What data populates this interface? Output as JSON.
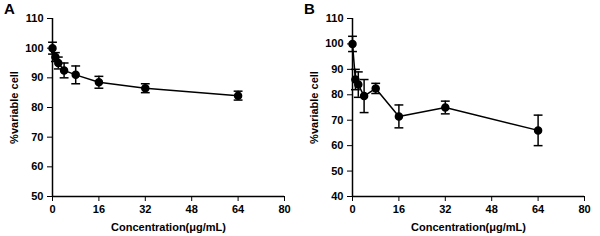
{
  "chart_data": [
    {
      "type": "line",
      "title": "A",
      "x": [
        0,
        1,
        2,
        4,
        8,
        16,
        32,
        64
      ],
      "values": [
        100,
        97,
        95,
        92.5,
        91,
        88.5,
        86.5,
        84
      ],
      "errors": [
        2,
        1.5,
        2,
        2.5,
        3,
        2,
        1.5,
        1.5
      ],
      "color": "#000000",
      "marker": "circle",
      "xlabel": "Concentration(μg/mL)",
      "ylabel": "%variable cell",
      "xlim": [
        0,
        80
      ],
      "xticks": [
        0,
        16,
        32,
        48,
        64,
        80
      ],
      "ylim": [
        50,
        110
      ],
      "yticks": [
        50,
        60,
        70,
        80,
        90,
        100,
        110
      ]
    },
    {
      "type": "line",
      "title": "B",
      "x": [
        0,
        1,
        2,
        4,
        8,
        16,
        32,
        64
      ],
      "values": [
        100,
        86,
        84,
        79.5,
        82.5,
        71.5,
        75,
        66
      ],
      "errors": [
        3,
        4,
        5,
        6.5,
        2,
        4.5,
        2.5,
        6
      ],
      "color": "#000000",
      "marker": "circle",
      "xlabel": "Concentration(μg/mL)",
      "ylabel": "%variable cell",
      "xlim": [
        0,
        80
      ],
      "xticks": [
        0,
        16,
        32,
        48,
        64,
        80
      ],
      "ylim": [
        40,
        110
      ],
      "yticks": [
        40,
        50,
        60,
        70,
        80,
        90,
        100,
        110
      ]
    }
  ]
}
